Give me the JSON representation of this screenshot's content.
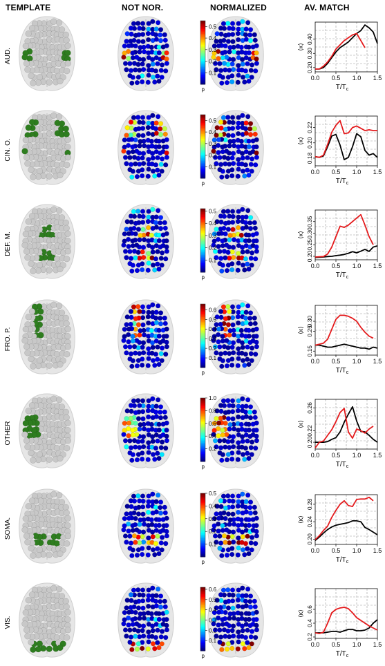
{
  "headers": {
    "template": "TEMPLATE",
    "not_normalized": "NOT NOR.",
    "normalized": "NORMALIZED",
    "av_match": "AV. MATCH"
  },
  "colors": {
    "template_node": "#2e7d1f",
    "brain_node": "#c8c8c8",
    "low_node": "#2b2f8c",
    "not_normalized_line": "#000000",
    "normalized_line": "#e41a1c"
  },
  "colorbar_label": "p",
  "xaxis_label_main": "T/T",
  "xaxis_label_sub": "c",
  "yaxis_label": "⟨κ⟩",
  "chart_data": [
    {
      "type": "line",
      "network": "AUD.",
      "colorbar_ticks": [
        "0.1",
        "0.2",
        "0.3",
        "0.4",
        "0.5"
      ],
      "colorbar_max": 0.55,
      "xlim": [
        0,
        1.5
      ],
      "ylim": [
        0.17,
        0.52
      ],
      "xticks": [
        "0.0",
        "0.5",
        "1.0",
        "1.5"
      ],
      "yticks": [
        "0.20",
        "0.30",
        "0.40"
      ],
      "x": [
        0.0,
        0.1,
        0.2,
        0.3,
        0.4,
        0.5,
        0.6,
        0.7,
        0.8,
        0.9,
        1.0,
        1.1,
        1.2,
        1.3,
        1.4,
        1.5
      ],
      "series": [
        {
          "key": "not_normalized",
          "values": [
            0.19,
            0.19,
            0.2,
            0.23,
            0.27,
            0.31,
            0.34,
            0.36,
            0.38,
            0.41,
            0.44,
            0.46,
            0.5,
            0.48,
            0.45,
            0.37
          ]
        },
        {
          "key": "normalized",
          "values": [
            0.19,
            0.19,
            0.21,
            0.24,
            0.28,
            0.33,
            0.36,
            0.39,
            0.41,
            0.43,
            0.44,
            0.39,
            0.34,
            null,
            0.33,
            null
          ]
        }
      ]
    },
    {
      "type": "line",
      "network": "CIN. O.",
      "colorbar_ticks": [
        "0.1",
        "0.2",
        "0.3",
        "0.4",
        "0.5"
      ],
      "colorbar_max": 0.55,
      "xlim": [
        0,
        1.5
      ],
      "ylim": [
        0.17,
        0.235
      ],
      "xticks": [
        "0.0",
        "0.5",
        "1.0",
        "1.5"
      ],
      "yticks": [
        "0.18",
        "0.20",
        "0.22"
      ],
      "x": [
        0.0,
        0.1,
        0.2,
        0.3,
        0.4,
        0.5,
        0.6,
        0.7,
        0.8,
        0.9,
        1.0,
        1.1,
        1.2,
        1.3,
        1.4,
        1.5
      ],
      "series": [
        {
          "key": "not_normalized",
          "values": [
            0.182,
            0.181,
            0.183,
            0.195,
            0.209,
            0.211,
            0.197,
            0.178,
            0.181,
            0.195,
            0.212,
            0.208,
            0.19,
            0.184,
            0.186,
            0.181
          ]
        },
        {
          "key": "normalized",
          "values": [
            0.182,
            0.181,
            0.184,
            0.198,
            0.214,
            0.223,
            0.229,
            0.212,
            0.213,
            0.22,
            0.222,
            0.219,
            0.216,
            0.217,
            0.216,
            0.216
          ]
        }
      ]
    },
    {
      "type": "line",
      "network": "DEF. M.",
      "colorbar_ticks": [
        "0.1",
        "0.2",
        "0.3",
        "0.4",
        "0.5"
      ],
      "colorbar_max": 0.52,
      "xlim": [
        0,
        1.5
      ],
      "ylim": [
        0.185,
        0.4
      ],
      "xticks": [
        "0.0",
        "0.5",
        "1.0",
        "1.5"
      ],
      "yticks": [
        "0.20",
        "0.25",
        "0.30",
        "0.35"
      ],
      "x": [
        0.0,
        0.1,
        0.2,
        0.3,
        0.4,
        0.5,
        0.6,
        0.7,
        0.8,
        0.9,
        1.0,
        1.1,
        1.2,
        1.3,
        1.4,
        1.5
      ],
      "series": [
        {
          "key": "not_normalized",
          "values": [
            0.195,
            0.196,
            0.197,
            0.199,
            0.2,
            0.203,
            0.205,
            0.208,
            0.213,
            0.22,
            0.215,
            0.222,
            0.23,
            0.221,
            0.24,
            0.245
          ]
        },
        {
          "key": "normalized",
          "values": [
            0.197,
            0.198,
            0.199,
            0.21,
            0.24,
            0.285,
            0.33,
            0.325,
            0.335,
            0.35,
            0.365,
            0.38,
            0.335,
            0.285,
            0.25,
            null
          ]
        }
      ]
    },
    {
      "type": "line",
      "network": "FRO. P.",
      "colorbar_ticks": [
        "0.1",
        "0.2",
        "0.3",
        "0.4",
        "0.5",
        "0.6"
      ],
      "colorbar_max": 0.66,
      "xlim": [
        0,
        1.5
      ],
      "ylim": [
        0.13,
        0.38
      ],
      "xticks": [
        "0.0",
        "0.5",
        "1.0",
        "1.5"
      ],
      "yticks": [
        "0.15",
        "0.25",
        "0.30"
      ],
      "x": [
        0.0,
        0.1,
        0.2,
        0.3,
        0.4,
        0.5,
        0.6,
        0.7,
        0.8,
        0.9,
        1.0,
        1.1,
        1.2,
        1.3,
        1.4,
        1.5
      ],
      "series": [
        {
          "key": "not_normalized",
          "values": [
            0.18,
            0.18,
            0.175,
            0.17,
            0.17,
            0.175,
            0.18,
            0.185,
            0.18,
            0.175,
            0.17,
            0.165,
            0.165,
            0.16,
            0.17,
            0.165
          ]
        },
        {
          "key": "normalized",
          "values": [
            0.18,
            0.185,
            0.19,
            0.21,
            0.26,
            0.31,
            0.33,
            0.33,
            0.325,
            0.315,
            0.3,
            0.27,
            0.245,
            0.225,
            0.215,
            null
          ]
        }
      ]
    },
    {
      "type": "line",
      "network": "OTHER",
      "colorbar_ticks": [
        "0.2",
        "0.4",
        "0.6",
        "0.8",
        "1.0"
      ],
      "colorbar_max": 1.0,
      "xlim": [
        0,
        1.5
      ],
      "ylim": [
        0.188,
        0.275
      ],
      "xticks": [
        "0.0",
        "0.5",
        "1.0",
        "1.5"
      ],
      "yticks": [
        "0.20",
        "0.22",
        "0.26"
      ],
      "x": [
        0.0,
        0.1,
        0.2,
        0.3,
        0.4,
        0.5,
        0.6,
        0.7,
        0.8,
        0.9,
        1.0,
        1.1,
        1.2,
        1.3,
        1.4,
        1.5
      ],
      "series": [
        {
          "key": "not_normalized",
          "values": [
            0.2,
            0.2,
            0.2,
            0.201,
            0.205,
            0.208,
            0.218,
            0.235,
            0.249,
            0.262,
            0.237,
            0.219,
            0.218,
            0.212,
            0.205,
            0.2
          ]
        },
        {
          "key": "normalized",
          "values": [
            0.19,
            0.2,
            0.202,
            0.212,
            0.222,
            0.236,
            0.252,
            0.259,
            0.218,
            0.207,
            0.223,
            0.22,
            0.216,
            0.223,
            0.228,
            null
          ]
        }
      ]
    },
    {
      "type": "line",
      "network": "SOMA.",
      "colorbar_ticks": [
        "0.1",
        "0.2",
        "0.3",
        "0.4",
        "0.5"
      ],
      "colorbar_max": 0.5,
      "xlim": [
        0,
        1.5
      ],
      "ylim": [
        0.188,
        0.302
      ],
      "xticks": [
        "0.0",
        "0.5",
        "1.0",
        "1.5"
      ],
      "yticks": [
        "0.20",
        "0.24",
        "0.28"
      ],
      "x": [
        0.0,
        0.1,
        0.2,
        0.3,
        0.4,
        0.5,
        0.6,
        0.7,
        0.8,
        0.9,
        1.0,
        1.1,
        1.2,
        1.3,
        1.4,
        1.5
      ],
      "series": [
        {
          "key": "not_normalized",
          "values": [
            0.197,
            0.205,
            0.214,
            0.222,
            0.228,
            0.232,
            0.234,
            0.236,
            0.238,
            0.242,
            0.242,
            0.24,
            0.227,
            0.222,
            0.216,
            0.21
          ]
        },
        {
          "key": "normalized",
          "values": [
            0.199,
            0.208,
            0.22,
            0.23,
            0.25,
            0.266,
            0.28,
            0.288,
            0.277,
            0.275,
            0.291,
            0.292,
            0.292,
            0.296,
            0.288,
            null
          ]
        }
      ]
    },
    {
      "type": "line",
      "network": "VIS.",
      "colorbar_ticks": [
        "0.1",
        "0.2",
        "0.3",
        "0.4",
        "0.5",
        "0.6"
      ],
      "colorbar_max": 0.62,
      "xlim": [
        0,
        1.5
      ],
      "ylim": [
        0.18,
        0.9
      ],
      "xticks": [
        "0.0",
        "0.5",
        "1.0",
        "1.5"
      ],
      "yticks": [
        "0.2",
        "0.4",
        "0.6"
      ],
      "x": [
        0.0,
        0.1,
        0.2,
        0.3,
        0.4,
        0.5,
        0.6,
        0.7,
        0.8,
        0.9,
        1.0,
        1.1,
        1.2,
        1.3,
        1.4,
        1.5
      ],
      "series": [
        {
          "key": "not_normalized",
          "values": [
            0.26,
            0.26,
            0.26,
            0.27,
            0.28,
            0.28,
            0.27,
            0.29,
            0.31,
            0.31,
            0.29,
            0.29,
            0.3,
            0.33,
            0.4,
            0.45
          ]
        },
        {
          "key": "normalized",
          "values": [
            0.26,
            0.25,
            0.27,
            0.4,
            0.55,
            0.6,
            0.62,
            0.63,
            0.61,
            0.55,
            0.48,
            0.44,
            0.4,
            0.36,
            0.33,
            0.3
          ]
        }
      ]
    }
  ]
}
